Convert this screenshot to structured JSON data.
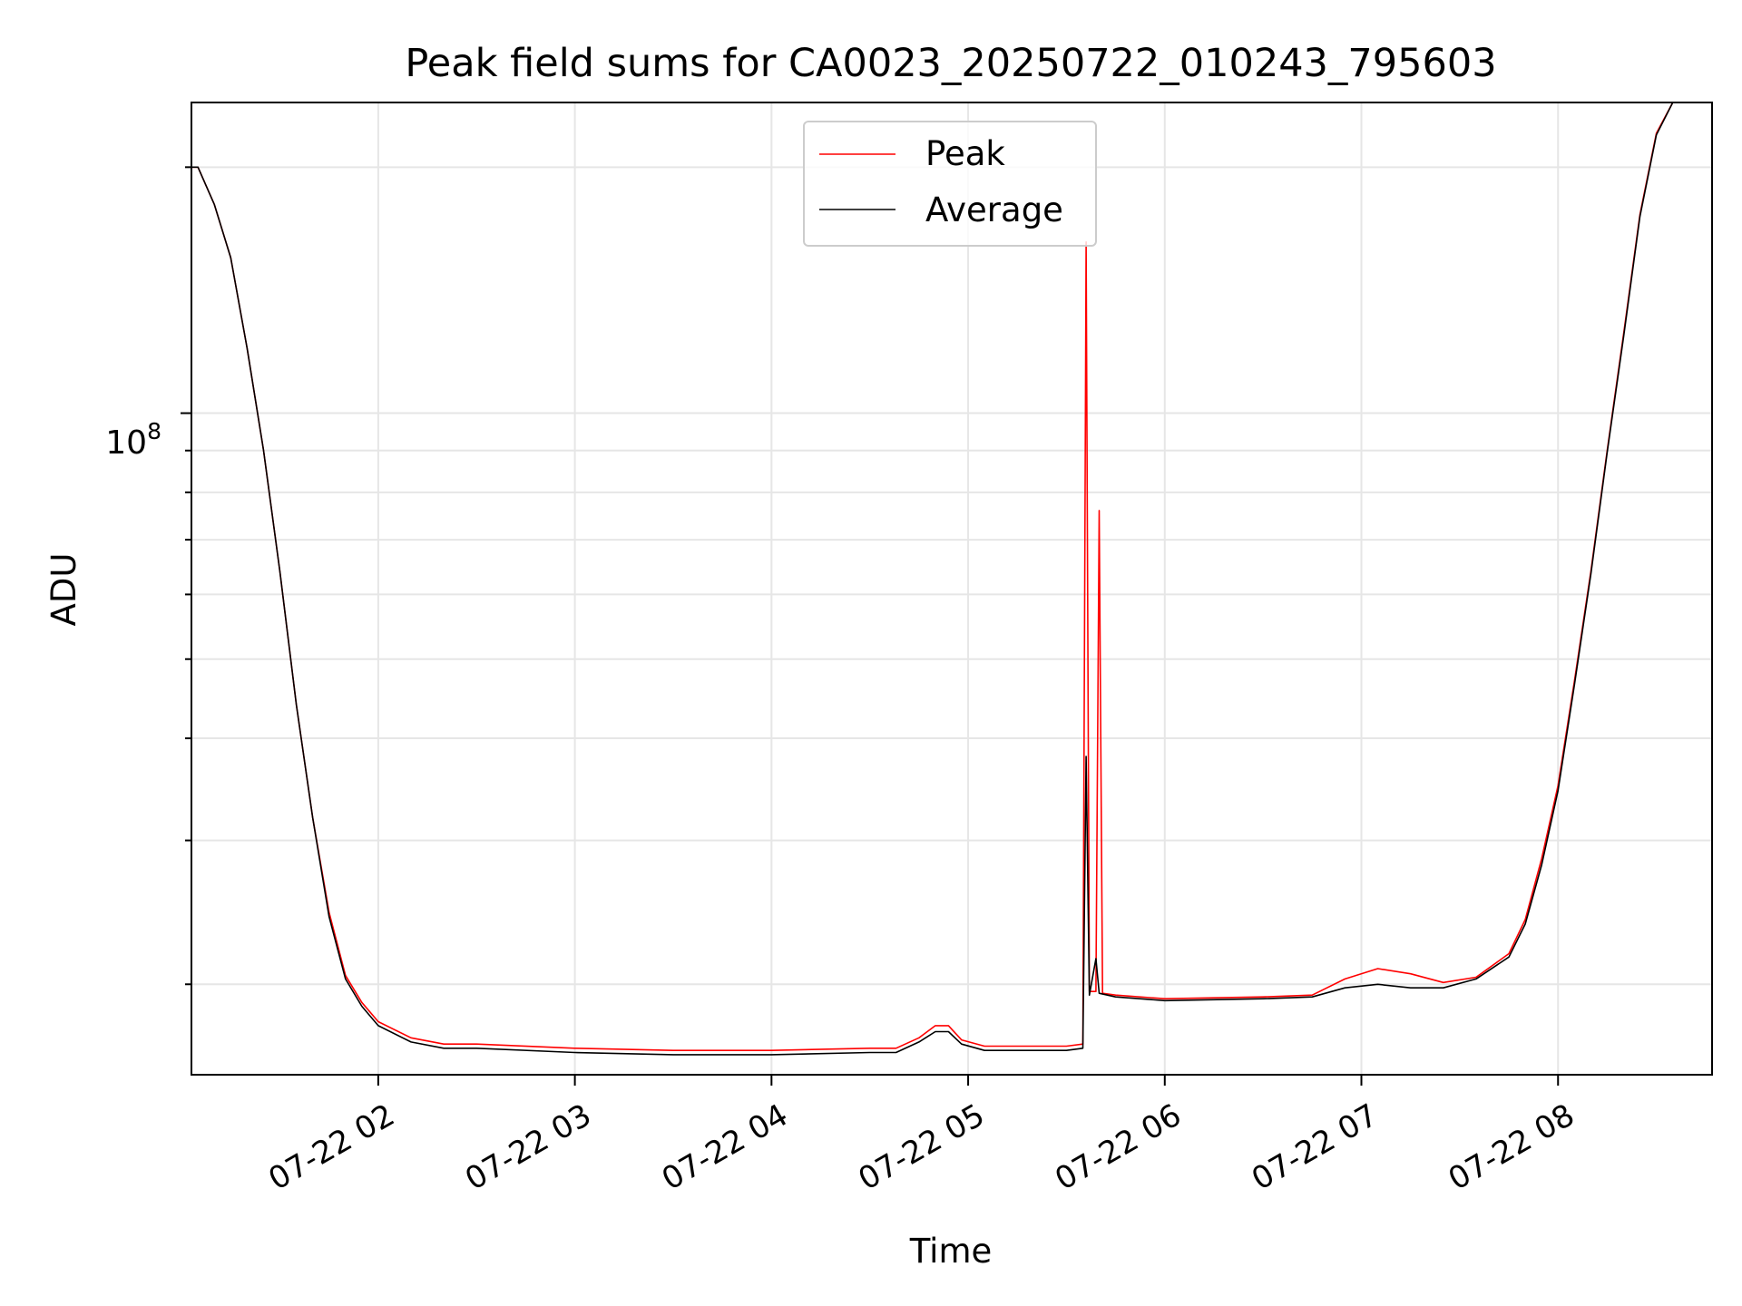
{
  "chart_data": {
    "type": "line",
    "title": "Peak field sums for CA0023_20250722_010243_795603",
    "xlabel": "Time",
    "ylabel": "ADU",
    "y_scale": "log",
    "ylim": [
      15500000,
      240000000
    ],
    "xlim": [
      "2025-07-22 01:03",
      "2025-07-22 08:47"
    ],
    "grid": true,
    "legend_position": "upper-center",
    "x_tick_labels": [
      "07-22 02",
      "07-22 03",
      "07-22 04",
      "07-22 05",
      "07-22 06",
      "07-22 07",
      "07-22 08"
    ],
    "x_ticks": [
      "2025-07-22 02:00",
      "2025-07-22 03:00",
      "2025-07-22 04:00",
      "2025-07-22 05:00",
      "2025-07-22 06:00",
      "2025-07-22 07:00",
      "2025-07-22 08:00"
    ],
    "y_tick_label": {
      "base": "10",
      "exponent": "8",
      "value": 100000000
    },
    "y_minor_ticks": [
      20000000,
      30000000,
      40000000,
      50000000,
      60000000,
      70000000,
      80000000,
      90000000,
      200000000
    ],
    "series": [
      {
        "name": "Peak",
        "color": "#ff0000",
        "points": [
          [
            "2025-07-22 01:03",
            200000000
          ],
          [
            "2025-07-22 01:05",
            200000000
          ],
          [
            "2025-07-22 01:10",
            180000000
          ],
          [
            "2025-07-22 01:15",
            155000000
          ],
          [
            "2025-07-22 01:20",
            120000000
          ],
          [
            "2025-07-22 01:25",
            90000000
          ],
          [
            "2025-07-22 01:30",
            64000000
          ],
          [
            "2025-07-22 01:35",
            44000000
          ],
          [
            "2025-07-22 01:40",
            32000000
          ],
          [
            "2025-07-22 01:45",
            24500000
          ],
          [
            "2025-07-22 01:50",
            20500000
          ],
          [
            "2025-07-22 01:55",
            19000000
          ],
          [
            "2025-07-22 02:00",
            18000000
          ],
          [
            "2025-07-22 02:10",
            17200000
          ],
          [
            "2025-07-22 02:20",
            16900000
          ],
          [
            "2025-07-22 02:30",
            16900000
          ],
          [
            "2025-07-22 03:00",
            16700000
          ],
          [
            "2025-07-22 03:30",
            16600000
          ],
          [
            "2025-07-22 04:00",
            16600000
          ],
          [
            "2025-07-22 04:30",
            16700000
          ],
          [
            "2025-07-22 04:38",
            16700000
          ],
          [
            "2025-07-22 04:45",
            17200000
          ],
          [
            "2025-07-22 04:50",
            17800000
          ],
          [
            "2025-07-22 04:54",
            17800000
          ],
          [
            "2025-07-22 04:58",
            17100000
          ],
          [
            "2025-07-22 05:05",
            16800000
          ],
          [
            "2025-07-22 05:30",
            16800000
          ],
          [
            "2025-07-22 05:35",
            16900000
          ],
          [
            "2025-07-22 05:36",
            162000000
          ],
          [
            "2025-07-22 05:37",
            19600000
          ],
          [
            "2025-07-22 05:39",
            19600000
          ],
          [
            "2025-07-22 05:40",
            76000000
          ],
          [
            "2025-07-22 05:41",
            19500000
          ],
          [
            "2025-07-22 05:45",
            19400000
          ],
          [
            "2025-07-22 06:00",
            19200000
          ],
          [
            "2025-07-22 06:30",
            19300000
          ],
          [
            "2025-07-22 06:45",
            19400000
          ],
          [
            "2025-07-22 06:55",
            20300000
          ],
          [
            "2025-07-22 07:05",
            20900000
          ],
          [
            "2025-07-22 07:15",
            20600000
          ],
          [
            "2025-07-22 07:25",
            20100000
          ],
          [
            "2025-07-22 07:35",
            20400000
          ],
          [
            "2025-07-22 07:45",
            21800000
          ],
          [
            "2025-07-22 07:50",
            24000000
          ],
          [
            "2025-07-22 07:55",
            28500000
          ],
          [
            "2025-07-22 08:00",
            35000000
          ],
          [
            "2025-07-22 08:05",
            47000000
          ],
          [
            "2025-07-22 08:10",
            64000000
          ],
          [
            "2025-07-22 08:15",
            90000000
          ],
          [
            "2025-07-22 08:20",
            125000000
          ],
          [
            "2025-07-22 08:25",
            175000000
          ],
          [
            "2025-07-22 08:30",
            220000000
          ],
          [
            "2025-07-22 08:35",
            240000000
          ],
          [
            "2025-07-22 08:47",
            240000000
          ]
        ]
      },
      {
        "name": "Average",
        "color": "#000000",
        "points": [
          [
            "2025-07-22 01:03",
            200000000
          ],
          [
            "2025-07-22 01:05",
            200000000
          ],
          [
            "2025-07-22 01:10",
            180000000
          ],
          [
            "2025-07-22 01:15",
            155000000
          ],
          [
            "2025-07-22 01:20",
            120000000
          ],
          [
            "2025-07-22 01:25",
            90000000
          ],
          [
            "2025-07-22 01:30",
            64000000
          ],
          [
            "2025-07-22 01:35",
            44000000
          ],
          [
            "2025-07-22 01:40",
            32000000
          ],
          [
            "2025-07-22 01:45",
            24200000
          ],
          [
            "2025-07-22 01:50",
            20300000
          ],
          [
            "2025-07-22 01:55",
            18800000
          ],
          [
            "2025-07-22 02:00",
            17800000
          ],
          [
            "2025-07-22 02:10",
            17000000
          ],
          [
            "2025-07-22 02:20",
            16700000
          ],
          [
            "2025-07-22 02:30",
            16700000
          ],
          [
            "2025-07-22 03:00",
            16500000
          ],
          [
            "2025-07-22 03:30",
            16400000
          ],
          [
            "2025-07-22 04:00",
            16400000
          ],
          [
            "2025-07-22 04:30",
            16500000
          ],
          [
            "2025-07-22 04:38",
            16500000
          ],
          [
            "2025-07-22 04:45",
            17000000
          ],
          [
            "2025-07-22 04:50",
            17500000
          ],
          [
            "2025-07-22 04:54",
            17500000
          ],
          [
            "2025-07-22 04:58",
            16900000
          ],
          [
            "2025-07-22 05:05",
            16600000
          ],
          [
            "2025-07-22 05:30",
            16600000
          ],
          [
            "2025-07-22 05:35",
            16700000
          ],
          [
            "2025-07-22 05:36",
            38000000
          ],
          [
            "2025-07-22 05:37",
            19400000
          ],
          [
            "2025-07-22 05:39",
            21500000
          ],
          [
            "2025-07-22 05:40",
            19500000
          ],
          [
            "2025-07-22 05:45",
            19300000
          ],
          [
            "2025-07-22 06:00",
            19100000
          ],
          [
            "2025-07-22 06:30",
            19200000
          ],
          [
            "2025-07-22 06:45",
            19300000
          ],
          [
            "2025-07-22 06:55",
            19800000
          ],
          [
            "2025-07-22 07:05",
            20000000
          ],
          [
            "2025-07-22 07:15",
            19800000
          ],
          [
            "2025-07-22 07:25",
            19800000
          ],
          [
            "2025-07-22 07:35",
            20300000
          ],
          [
            "2025-07-22 07:45",
            21600000
          ],
          [
            "2025-07-22 07:50",
            23700000
          ],
          [
            "2025-07-22 07:55",
            28000000
          ],
          [
            "2025-07-22 08:00",
            34500000
          ],
          [
            "2025-07-22 08:05",
            46500000
          ],
          [
            "2025-07-22 08:10",
            63500000
          ],
          [
            "2025-07-22 08:15",
            89500000
          ],
          [
            "2025-07-22 08:20",
            124000000
          ],
          [
            "2025-07-22 08:25",
            174000000
          ],
          [
            "2025-07-22 08:30",
            219000000
          ],
          [
            "2025-07-22 08:35",
            240000000
          ],
          [
            "2025-07-22 08:47",
            240000000
          ]
        ]
      }
    ]
  }
}
